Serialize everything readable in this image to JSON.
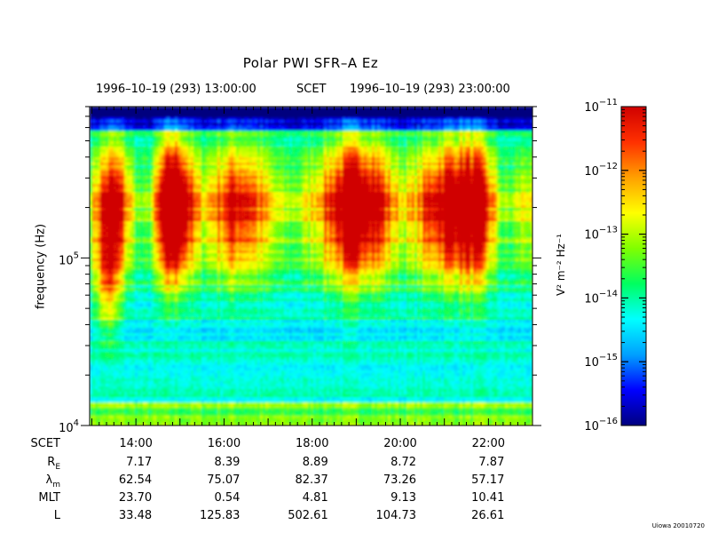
{
  "chart_data": {
    "type": "heatmap",
    "title": "Polar PWI SFR–A Ez",
    "time_range": {
      "start_label": "1996–10–19 (293) 13:00:00",
      "time_system": "SCET",
      "end_label": "1996–10–19 (293) 23:00:00",
      "start_hour": 13,
      "end_hour": 23
    },
    "ylabel": "frequency (Hz)",
    "yscale": "log",
    "ylim": [
      10000,
      800000
    ],
    "y_ticks": [
      {
        "value": 10000,
        "base": "10",
        "exp": "4"
      },
      {
        "value": 100000,
        "base": "10",
        "exp": "5"
      }
    ],
    "colorbar": {
      "label": "V² m⁻² Hz⁻¹",
      "scale": "log",
      "range": [
        1e-16,
        1e-11
      ],
      "ticks": [
        {
          "base": "10",
          "exp": "−11",
          "value": 1e-11
        },
        {
          "base": "10",
          "exp": "−12",
          "value": 1e-12
        },
        {
          "base": "10",
          "exp": "−13",
          "value": 1e-13
        },
        {
          "base": "10",
          "exp": "−14",
          "value": 1e-14
        },
        {
          "base": "10",
          "exp": "−15",
          "value": 1e-15
        },
        {
          "base": "10",
          "exp": "−16",
          "value": 1e-16
        }
      ],
      "colors": [
        "#00007f",
        "#0000ff",
        "#00a0ff",
        "#00ffff",
        "#00ff60",
        "#80ff00",
        "#ffff00",
        "#ffa000",
        "#ff3000",
        "#d00000"
      ]
    },
    "ephemeris": {
      "rows": [
        {
          "label": "SCET",
          "label_sub": "",
          "values": [
            "14:00",
            "16:00",
            "18:00",
            "20:00",
            "22:00"
          ]
        },
        {
          "label": "R",
          "label_sub": "E",
          "values": [
            "7.17",
            "8.39",
            "8.89",
            "8.72",
            "7.87"
          ]
        },
        {
          "label": "λ",
          "label_sub": "m",
          "values": [
            "62.54",
            "75.07",
            "82.37",
            "73.26",
            "57.17"
          ]
        },
        {
          "label": "MLT",
          "label_sub": "",
          "values": [
            "23.70",
            "0.54",
            "4.81",
            "9.13",
            "10.41"
          ]
        },
        {
          "label": "L",
          "label_sub": "",
          "values": [
            "33.48",
            "125.83",
            "502.61",
            "104.73",
            "26.61"
          ]
        }
      ],
      "hours": [
        14,
        16,
        18,
        20,
        22
      ]
    }
  },
  "footer": {
    "stamp": "Uiowa 20010720"
  }
}
